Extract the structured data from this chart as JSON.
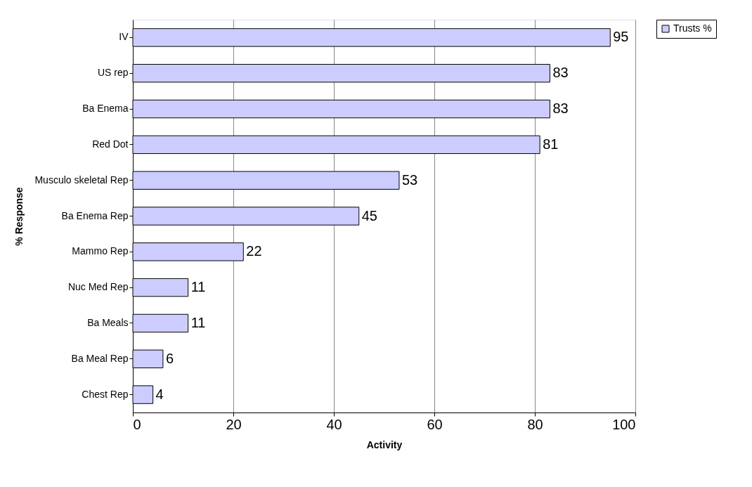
{
  "chart_data": {
    "type": "bar",
    "orientation": "horizontal",
    "xlabel": "Activity",
    "ylabel": "% Response",
    "categories": [
      "IV",
      "US rep",
      "Ba Enema",
      "Red Dot",
      "Musculo skeletal Rep",
      "Ba Enema Rep",
      "Mammo Rep",
      "Nuc Med Rep",
      "Ba Meals",
      "Ba Meal Rep",
      "Chest Rep"
    ],
    "series": [
      {
        "name": "Trusts %",
        "color": "#ccccff",
        "values": [
          95,
          83,
          83,
          81,
          53,
          45,
          22,
          11,
          11,
          6,
          4
        ]
      }
    ],
    "xlim": [
      0,
      100
    ],
    "xticks": [
      0,
      20,
      40,
      60,
      80,
      100
    ],
    "grid": "x",
    "legend": "right",
    "data_labels": true
  }
}
